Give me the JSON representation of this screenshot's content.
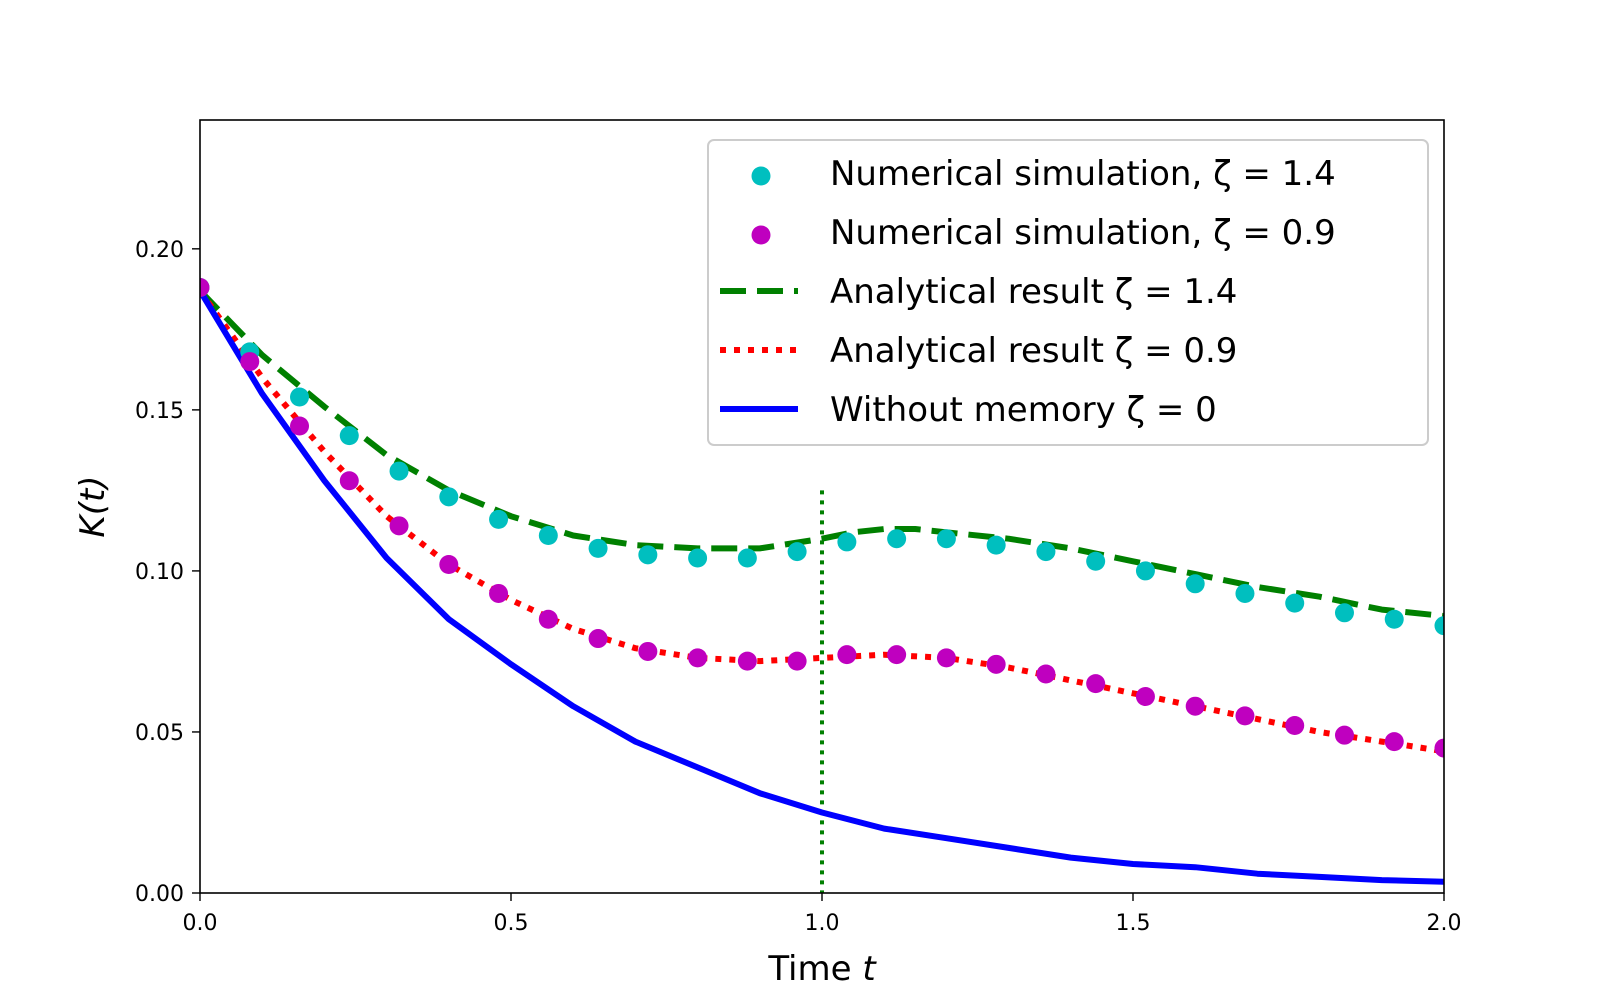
{
  "chart_data": {
    "type": "line",
    "title": "",
    "xlabel": "Time t",
    "xlabel_text": "Time ",
    "xlabel_var": "t",
    "ylabel": "K(t)",
    "ylabel_parts": [
      "K(",
      "t",
      ")"
    ],
    "xlim": [
      0.0,
      2.0
    ],
    "ylim": [
      0.0,
      0.24
    ],
    "xticks": [
      0.0,
      0.5,
      1.0,
      1.5,
      2.0
    ],
    "xtick_labels": [
      "0.0",
      "0.5",
      "1.0",
      "1.5",
      "2.0"
    ],
    "yticks": [
      0.0,
      0.05,
      0.1,
      0.15,
      0.2
    ],
    "ytick_labels": [
      "0.00",
      "0.05",
      "0.10",
      "0.15",
      "0.20"
    ],
    "grid": false,
    "legend_position": "top-right",
    "vertical_marker": {
      "x": 1.0,
      "style": "dotted",
      "color": "#008000"
    },
    "series": [
      {
        "name": "Numerical simulation, ζ = 1.4",
        "kind": "scatter",
        "color": "#00bfbf",
        "x": [
          0.0,
          0.08,
          0.16,
          0.24,
          0.32,
          0.4,
          0.48,
          0.56,
          0.64,
          0.72,
          0.8,
          0.88,
          0.96,
          1.04,
          1.12,
          1.2,
          1.28,
          1.36,
          1.44,
          1.52,
          1.6,
          1.68,
          1.76,
          1.84,
          1.92,
          2.0
        ],
        "y": [
          0.188,
          0.168,
          0.154,
          0.142,
          0.131,
          0.123,
          0.116,
          0.111,
          0.107,
          0.105,
          0.104,
          0.104,
          0.106,
          0.109,
          0.11,
          0.11,
          0.108,
          0.106,
          0.103,
          0.1,
          0.096,
          0.093,
          0.09,
          0.087,
          0.085,
          0.083
        ]
      },
      {
        "name": "Numerical simulation, ζ = 0.9",
        "kind": "scatter",
        "color": "#bf00bf",
        "x": [
          0.0,
          0.08,
          0.16,
          0.24,
          0.32,
          0.4,
          0.48,
          0.56,
          0.64,
          0.72,
          0.8,
          0.88,
          0.96,
          1.04,
          1.12,
          1.2,
          1.28,
          1.36,
          1.44,
          1.52,
          1.6,
          1.68,
          1.76,
          1.84,
          1.92,
          2.0
        ],
        "y": [
          0.188,
          0.165,
          0.145,
          0.128,
          0.114,
          0.102,
          0.093,
          0.085,
          0.079,
          0.075,
          0.073,
          0.072,
          0.072,
          0.074,
          0.074,
          0.073,
          0.071,
          0.068,
          0.065,
          0.061,
          0.058,
          0.055,
          0.052,
          0.049,
          0.047,
          0.045
        ]
      },
      {
        "name": "Analytical result ζ = 1.4",
        "kind": "line",
        "style": "dashed",
        "color": "#008000",
        "x": [
          0.0,
          0.1,
          0.2,
          0.3,
          0.4,
          0.5,
          0.6,
          0.7,
          0.8,
          0.9,
          1.0,
          1.05,
          1.1,
          1.15,
          1.2,
          1.3,
          1.4,
          1.5,
          1.6,
          1.7,
          1.8,
          1.9,
          2.0
        ],
        "y": [
          0.187,
          0.167,
          0.151,
          0.136,
          0.125,
          0.117,
          0.111,
          0.108,
          0.107,
          0.107,
          0.11,
          0.112,
          0.113,
          0.113,
          0.112,
          0.11,
          0.107,
          0.103,
          0.099,
          0.095,
          0.092,
          0.088,
          0.086
        ]
      },
      {
        "name": "Analytical result ζ = 0.9",
        "kind": "line",
        "style": "dotted",
        "color": "#ff0000",
        "x": [
          0.0,
          0.1,
          0.2,
          0.3,
          0.4,
          0.5,
          0.6,
          0.7,
          0.8,
          0.9,
          1.0,
          1.1,
          1.2,
          1.3,
          1.4,
          1.5,
          1.6,
          1.7,
          1.8,
          1.9,
          2.0
        ],
        "y": [
          0.187,
          0.16,
          0.137,
          0.117,
          0.102,
          0.091,
          0.082,
          0.076,
          0.073,
          0.072,
          0.073,
          0.074,
          0.073,
          0.07,
          0.066,
          0.062,
          0.058,
          0.054,
          0.05,
          0.047,
          0.044
        ]
      },
      {
        "name": "Without memory ζ = 0",
        "kind": "line",
        "style": "solid",
        "color": "#0000ff",
        "x": [
          0.0,
          0.1,
          0.2,
          0.3,
          0.4,
          0.5,
          0.6,
          0.7,
          0.8,
          0.9,
          1.0,
          1.1,
          1.2,
          1.3,
          1.4,
          1.5,
          1.6,
          1.7,
          1.8,
          1.9,
          2.0
        ],
        "y": [
          0.187,
          0.155,
          0.128,
          0.104,
          0.085,
          0.071,
          0.058,
          0.047,
          0.039,
          0.031,
          0.025,
          0.02,
          0.017,
          0.014,
          0.011,
          0.009,
          0.008,
          0.006,
          0.005,
          0.004,
          0.0035
        ]
      }
    ]
  }
}
